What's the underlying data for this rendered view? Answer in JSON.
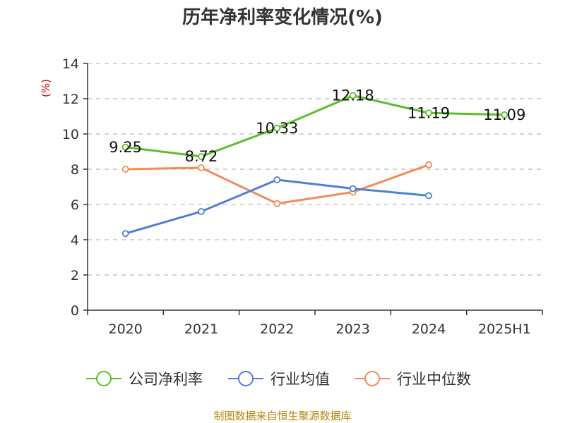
{
  "chart_data": {
    "type": "line",
    "title": "历年净利率变化情况(%)",
    "ylabel": "(%)",
    "xlabel": "",
    "categories": [
      "2020",
      "2021",
      "2022",
      "2023",
      "2024",
      "2025H1"
    ],
    "ylim": [
      0,
      14
    ],
    "yticks": [
      0,
      2,
      4,
      6,
      8,
      10,
      12,
      14
    ],
    "grid": true,
    "legend_position": "bottom",
    "series": [
      {
        "name": "公司净利率",
        "color": "#5cbf2a",
        "values": [
          9.25,
          8.72,
          10.33,
          12.18,
          11.19,
          11.09
        ],
        "labels": [
          "9.25",
          "8.72",
          "10.33",
          "12.18",
          "11.19",
          "11.09"
        ]
      },
      {
        "name": "行业均值",
        "color": "#4f7fdb",
        "values": [
          4.35,
          5.6,
          7.4,
          6.9,
          6.5,
          null
        ]
      },
      {
        "name": "行业中位数",
        "color": "#f28c5a",
        "values": [
          8.0,
          8.08,
          6.05,
          6.7,
          8.25,
          null
        ]
      }
    ]
  },
  "footer": {
    "source": "制图数据来自恒生聚源数据库"
  }
}
